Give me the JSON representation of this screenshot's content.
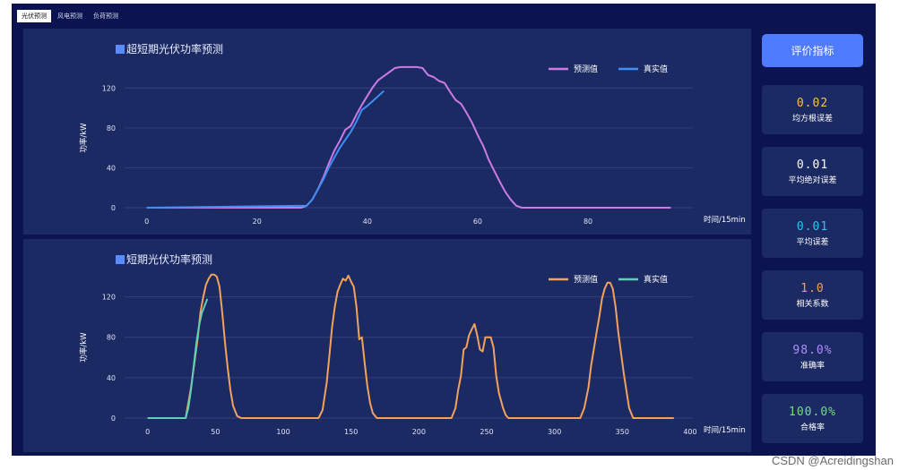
{
  "tabs": [
    {
      "label": "光伏预测",
      "active": true
    },
    {
      "label": "风电预测",
      "active": false
    },
    {
      "label": "负荷预测",
      "active": false
    }
  ],
  "sidebar": {
    "button_label": "评价指标",
    "metrics": [
      {
        "value": "0.02",
        "label": "均方根误差",
        "color": "#f5c447"
      },
      {
        "value": "0.01",
        "label": "平均绝对误差",
        "color": "#ffffff"
      },
      {
        "value": "0.01",
        "label": "平均误差",
        "color": "#2fc3f2"
      },
      {
        "value": "1.0",
        "label": "相关系数",
        "color": "#f2a25a"
      },
      {
        "value": "98.0%",
        "label": "准确率",
        "color": "#b08cff"
      },
      {
        "value": "100.0%",
        "label": "合格率",
        "color": "#6de07f"
      }
    ]
  },
  "watermark": "CSDN @Acreidingshan",
  "chart_data": [
    {
      "type": "line",
      "title": "超短期光伏功率预测",
      "xlabel": "时间/15min",
      "ylabel": "功率/kW",
      "xlim": [
        -4,
        99
      ],
      "ylim": [
        0,
        140
      ],
      "xticks": [
        0,
        20,
        40,
        60,
        80
      ],
      "yticks": [
        0,
        40,
        80,
        120
      ],
      "grid": true,
      "legend_position": "top-right",
      "series": [
        {
          "name": "预测值",
          "color": "#cc7ae6",
          "x": [
            0,
            28,
            29,
            30,
            31,
            32,
            33,
            34,
            35,
            36,
            37,
            38,
            39,
            40,
            41,
            42,
            43,
            44,
            45,
            46,
            47,
            48,
            49,
            50,
            51,
            52,
            53,
            54,
            55,
            56,
            57,
            58,
            59,
            60,
            61,
            62,
            63,
            64,
            65,
            66,
            67,
            68,
            69,
            70,
            95
          ],
          "y": [
            0,
            0,
            2,
            8,
            18,
            30,
            44,
            57,
            67,
            78,
            82,
            93,
            103,
            112,
            121,
            128,
            132,
            136,
            140,
            141,
            141,
            141,
            141,
            140,
            133,
            131,
            127,
            125,
            116,
            108,
            104,
            95,
            85,
            73,
            62,
            48,
            37,
            26,
            16,
            8,
            2,
            0,
            0,
            0,
            0
          ]
        },
        {
          "name": "真实值",
          "color": "#3d8ef5",
          "x": [
            0,
            29,
            30,
            31,
            32,
            33,
            34,
            35,
            36,
            37,
            38,
            39,
            40,
            41,
            42,
            43
          ],
          "y": [
            0,
            2,
            8,
            18,
            28,
            40,
            50,
            60,
            68,
            76,
            86,
            98,
            102,
            107,
            112,
            117
          ]
        }
      ]
    },
    {
      "type": "line",
      "title": "短期光伏功率预测",
      "xlabel": "时间/15min",
      "ylabel": "功率/kW",
      "xlim": [
        -17,
        402
      ],
      "ylim": [
        0,
        140
      ],
      "xticks": [
        0,
        50,
        100,
        150,
        200,
        250,
        300,
        350,
        400
      ],
      "yticks": [
        0,
        40,
        80,
        120
      ],
      "grid": true,
      "legend_position": "top-right",
      "series": [
        {
          "name": "预测值",
          "color": "#f2a25a",
          "x": [
            0,
            28,
            32,
            35,
            37,
            39,
            41,
            43,
            45,
            47,
            49,
            51,
            53,
            55,
            57,
            59,
            61,
            63,
            66,
            69,
            126,
            129,
            132,
            134,
            136,
            138,
            140,
            142,
            144,
            146,
            148,
            150,
            152,
            154,
            156,
            158,
            160,
            162,
            164,
            166,
            169,
            224,
            227,
            229,
            231,
            233,
            235,
            237,
            239,
            241,
            243,
            245,
            247,
            249,
            251,
            253,
            255,
            257,
            259,
            262,
            264,
            266,
            269,
            319,
            322,
            325,
            327,
            329,
            331,
            333,
            335,
            337,
            339,
            341,
            343,
            345,
            347,
            349,
            351,
            353,
            355,
            358,
            388
          ],
          "y": [
            0,
            0,
            30,
            60,
            80,
            105,
            120,
            132,
            138,
            142,
            142,
            140,
            130,
            105,
            75,
            50,
            28,
            12,
            2,
            0,
            0,
            8,
            35,
            62,
            90,
            110,
            125,
            132,
            138,
            136,
            141,
            135,
            130,
            110,
            78,
            80,
            55,
            32,
            15,
            5,
            0,
            0,
            10,
            28,
            42,
            68,
            70,
            82,
            88,
            93,
            82,
            68,
            66,
            80,
            80,
            80,
            70,
            42,
            25,
            10,
            3,
            0,
            0,
            0,
            10,
            30,
            52,
            68,
            85,
            100,
            118,
            128,
            134,
            134,
            128,
            110,
            85,
            65,
            45,
            27,
            10,
            0,
            0
          ]
        },
        {
          "name": "真实值",
          "color": "#5ecfb8",
          "x": [
            0,
            28,
            30,
            32,
            34,
            36,
            38,
            40,
            42,
            44
          ],
          "y": [
            0,
            0,
            10,
            28,
            52,
            75,
            92,
            104,
            111,
            118
          ]
        }
      ]
    }
  ]
}
